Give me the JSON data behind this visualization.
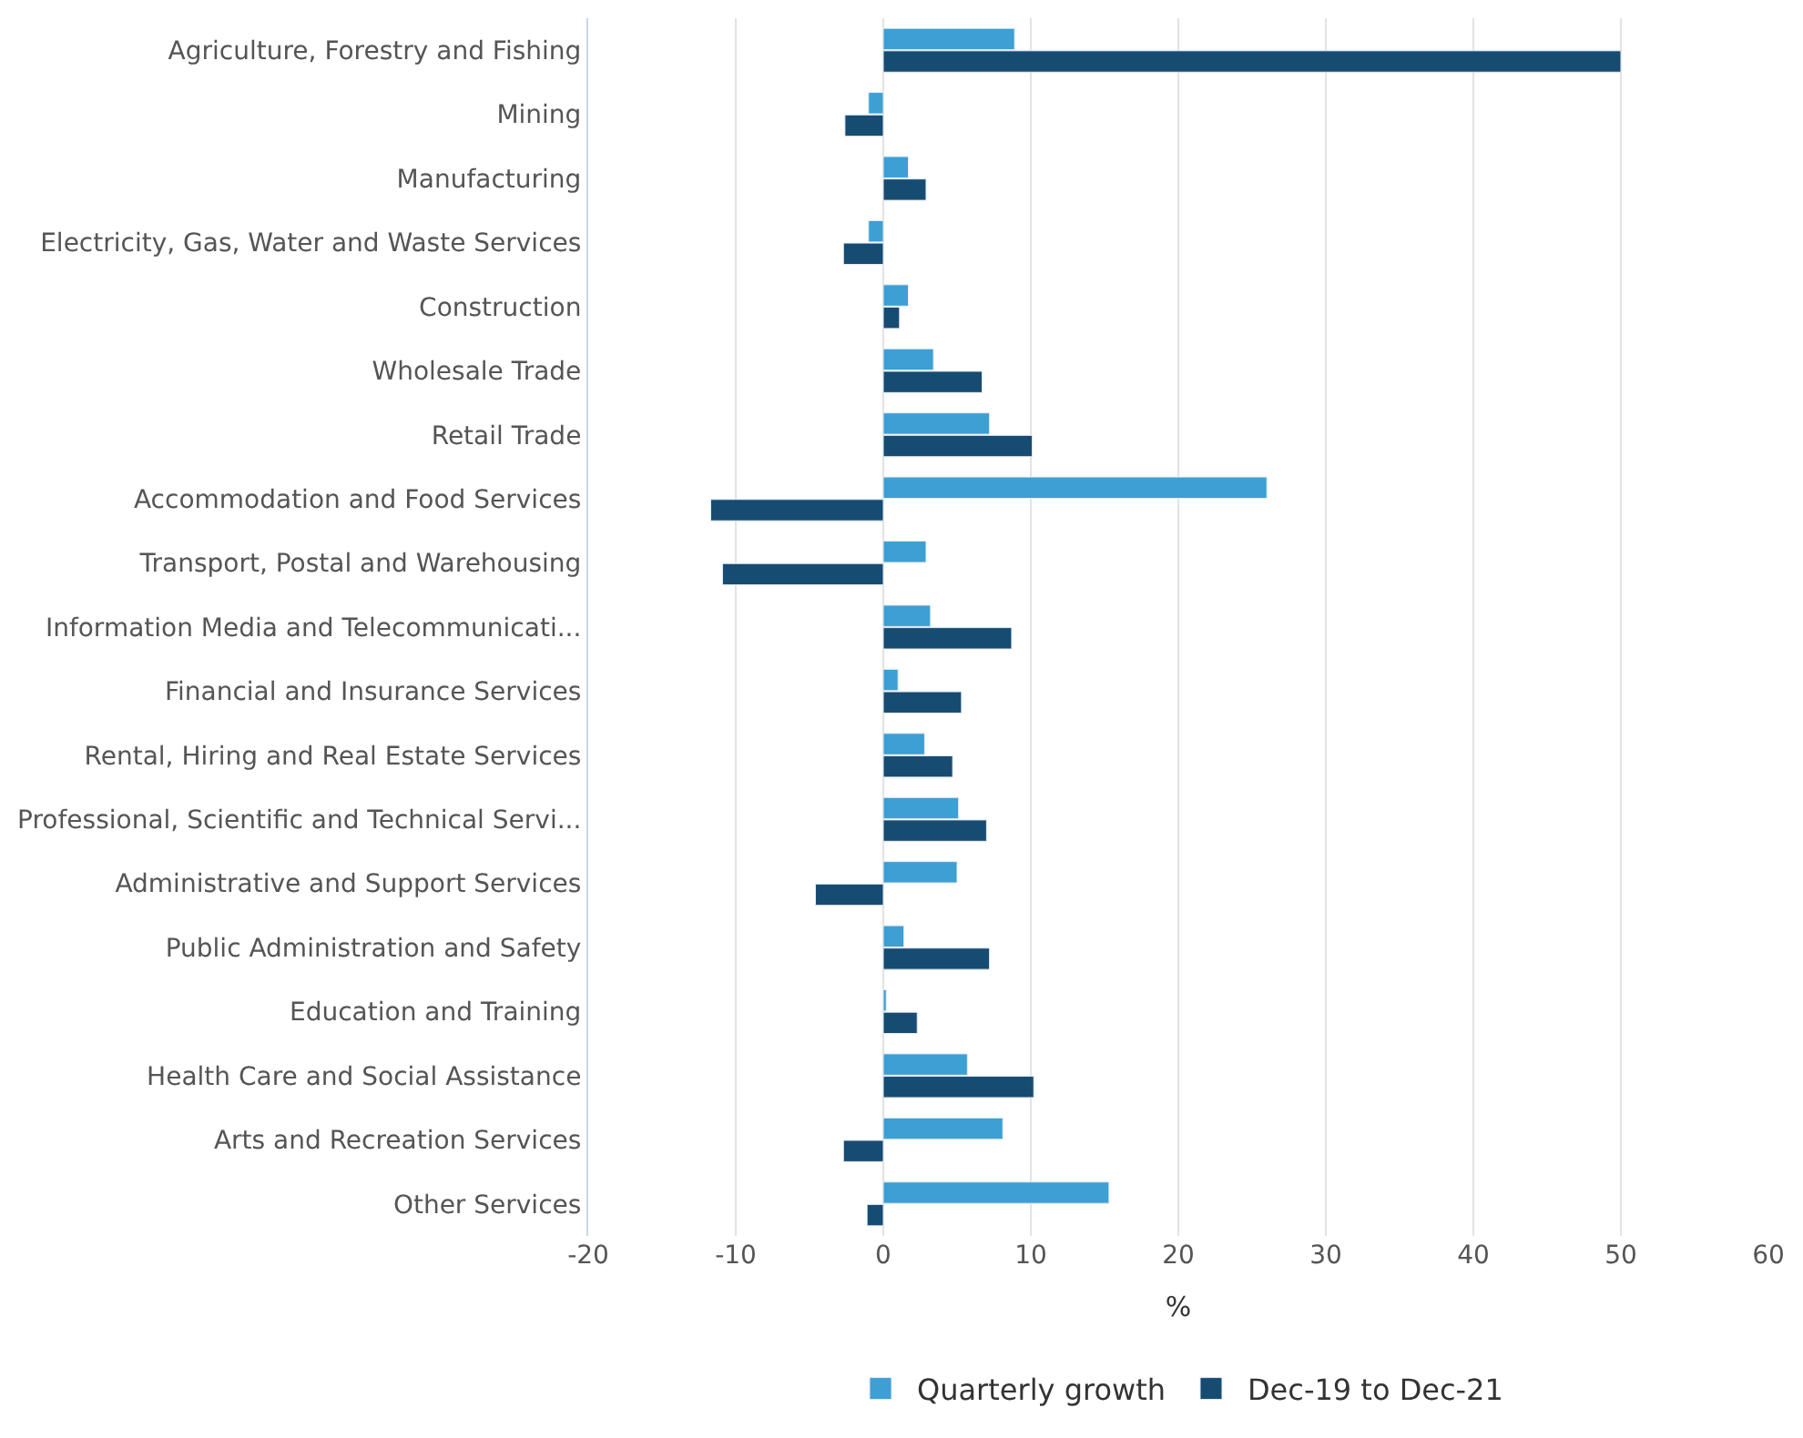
{
  "chart_data": {
    "type": "bar",
    "orientation": "horizontal",
    "xlabel": "%",
    "categories": [
      "Agriculture, Forestry and Fishing",
      "Mining",
      "Manufacturing",
      "Electricity, Gas, Water and Waste Services",
      "Construction",
      "Wholesale Trade",
      "Retail Trade",
      "Accommodation and Food Services",
      "Transport, Postal and Warehousing",
      "Information Media and Telecommunicati...",
      "Financial and Insurance Services",
      "Rental, Hiring and Real Estate Services",
      "Professional, Scientific and Technical Servi...",
      "Administrative and Support Services",
      "Public Administration and Safety",
      "Education and Training",
      "Health Care and Social Assistance",
      "Arts and Recreation Services",
      "Other Services"
    ],
    "series": [
      {
        "name": "Quarterly growth",
        "color": "#3d9fd3",
        "values": [
          8.9,
          -1.0,
          1.7,
          -1.0,
          1.7,
          3.4,
          7.2,
          26.0,
          2.9,
          3.2,
          1.0,
          2.8,
          5.1,
          5.0,
          1.4,
          0.2,
          5.7,
          8.1,
          15.3
        ]
      },
      {
        "name": "Dec-19 to Dec-21",
        "color": "#164b72",
        "values": [
          50.0,
          -2.6,
          2.9,
          -2.7,
          1.1,
          6.7,
          10.1,
          -11.7,
          -10.9,
          8.7,
          5.3,
          4.7,
          7.0,
          -4.6,
          7.2,
          2.3,
          10.2,
          -2.7,
          -1.1
        ]
      }
    ],
    "xlim": [
      -20,
      60
    ],
    "xticks": [
      -20,
      -10,
      0,
      10,
      20,
      30,
      40,
      50,
      60
    ],
    "grid": "x",
    "legend": "bottom"
  }
}
